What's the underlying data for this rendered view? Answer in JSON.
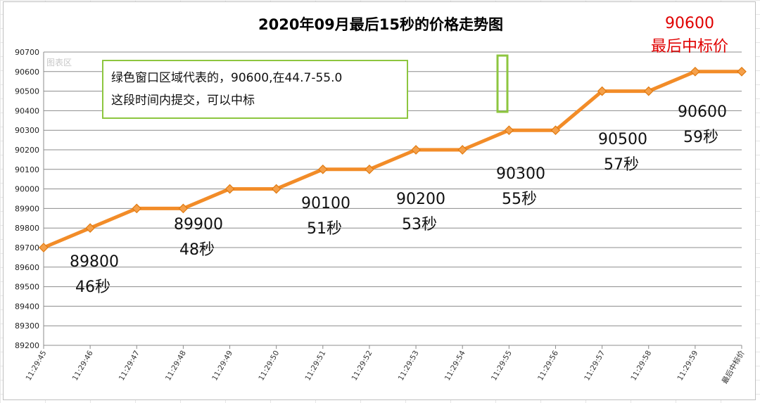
{
  "chart_data": {
    "type": "line",
    "title": "2020年09月最后15秒的价格走势图",
    "categories": [
      "11:29:45",
      "11:29:46",
      "11:29:47",
      "11:29:48",
      "11:29:49",
      "11:29:50",
      "11:29:51",
      "11:29:52",
      "11:29:53",
      "11:29:54",
      "11:29:55",
      "11:29:56",
      "11:29:57",
      "11:29:58",
      "11:29:59",
      "最后中标价"
    ],
    "values": [
      89700,
      89800,
      89900,
      89900,
      90000,
      90000,
      90100,
      90100,
      90200,
      90200,
      90300,
      90300,
      90500,
      90500,
      90600,
      90600
    ],
    "ylim": [
      89200,
      90700
    ],
    "yticks": [
      89200,
      89300,
      89400,
      89500,
      89600,
      89700,
      89800,
      89900,
      90000,
      90100,
      90200,
      90300,
      90400,
      90500,
      90600,
      90700
    ],
    "grid": true,
    "legend": "none",
    "line_color": "#f28c28",
    "marker": "diamond",
    "annotations": [
      {
        "price": "89800",
        "time": "46秒"
      },
      {
        "price": "89900",
        "time": "48秒"
      },
      {
        "price": "90100",
        "time": "51秒"
      },
      {
        "price": "90200",
        "time": "53秒"
      },
      {
        "price": "90300",
        "time": "55秒"
      },
      {
        "price": "90500",
        "time": "57秒"
      },
      {
        "price": "90600",
        "time": "59秒"
      }
    ],
    "final_callout": {
      "price": "90600",
      "label": "最后中标价",
      "color": "#e00000"
    },
    "note": {
      "line1": "绿色窗口区域代表的，90600,在44.7-55.0",
      "line2": "这段时间内提交，可以中标",
      "border_color": "#8dc63f"
    },
    "plot_area_label": "图表区"
  }
}
